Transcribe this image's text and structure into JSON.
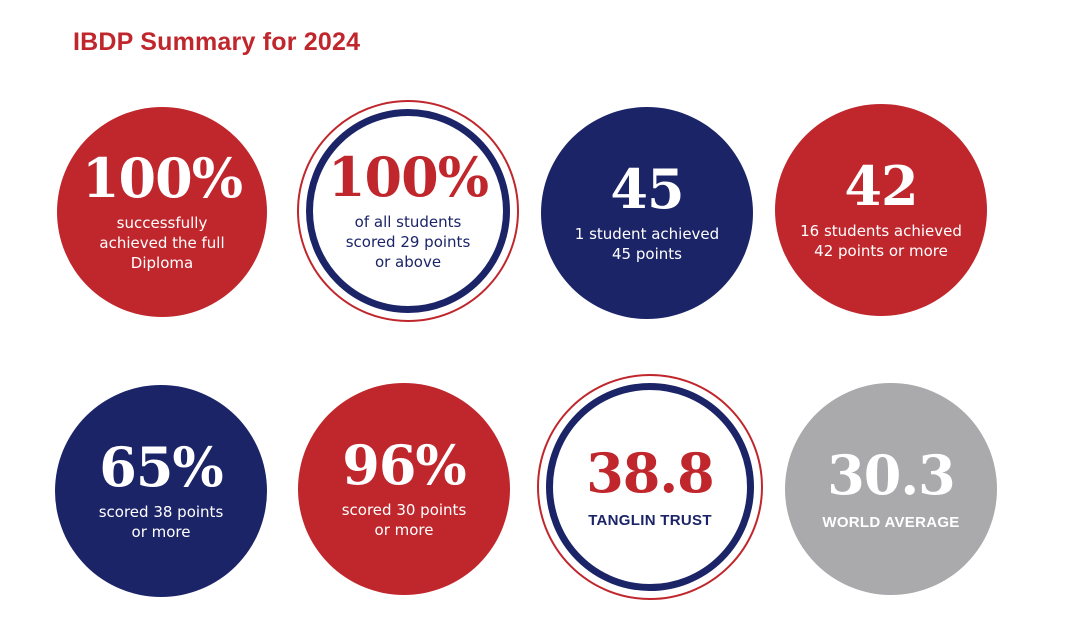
{
  "title": "IBDP Summary for 2024",
  "colors": {
    "red": "#c0272d",
    "navy": "#1c2468",
    "grey": "#aaaaac"
  },
  "stats": [
    {
      "value": "100%",
      "label_lines": [
        "successfully",
        "achieved the full",
        "Diploma"
      ]
    },
    {
      "value": "100%",
      "label_lines": [
        "of all students",
        "scored 29 points",
        "or above"
      ]
    },
    {
      "value": "45",
      "label_lines": [
        "1 student achieved",
        "45 points"
      ]
    },
    {
      "value": "42",
      "label_lines": [
        "16 students achieved",
        "42 points or more"
      ]
    },
    {
      "value": "65%",
      "label_lines": [
        "scored 38 points",
        "or more"
      ]
    },
    {
      "value": "96%",
      "label_lines": [
        "scored 30 points",
        "or more"
      ]
    },
    {
      "value": "38.8",
      "label_lines": [
        "TANGLIN TRUST"
      ]
    },
    {
      "value": "30.3",
      "label_lines": [
        "WORLD AVERAGE"
      ]
    }
  ]
}
